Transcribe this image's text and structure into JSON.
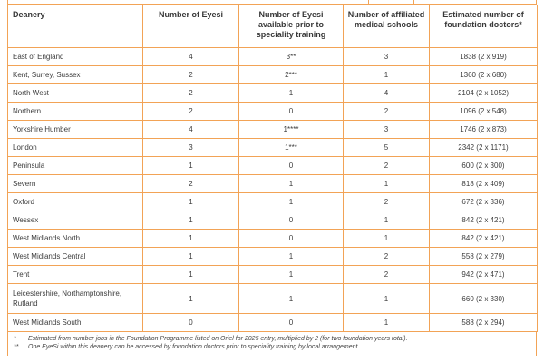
{
  "page": {
    "table": {
      "headers": [
        "Deanery",
        "Number of Eyesi",
        "Number of Eyesi\navailable prior to\nspeciality training",
        "Number of affiliated\nmedical schools",
        "Estimated number of\nfoundation doctors*"
      ],
      "rows": [
        [
          "East of England",
          "4",
          "3**",
          "3",
          "1838 (2 x 919)"
        ],
        [
          "Kent, Surrey, Sussex",
          "2",
          "2***",
          "1",
          "1360 (2 x 680)"
        ],
        [
          "North West",
          "2",
          "1",
          "4",
          "2104 (2 x 1052)"
        ],
        [
          "Northern",
          "2",
          "0",
          "2",
          "1096 (2 x 548)"
        ],
        [
          "Yorkshire Humber",
          "4",
          "1****",
          "3",
          "1746 (2 x 873)"
        ],
        [
          "London",
          "3",
          "1***",
          "5",
          "2342 (2 x 1171)"
        ],
        [
          "Peninsula",
          "1",
          "0",
          "2",
          "600 (2 x 300)"
        ],
        [
          "Severn",
          "2",
          "1",
          "1",
          "818 (2 x 409)"
        ],
        [
          "Oxford",
          "1",
          "1",
          "2",
          "672 (2 x 336)"
        ],
        [
          "Wessex",
          "1",
          "0",
          "1",
          "842 (2 x 421)"
        ],
        [
          "West Midlands North",
          "1",
          "0",
          "1",
          "842 (2 x 421)"
        ],
        [
          "West Midlands Central",
          "1",
          "1",
          "2",
          "558 (2 x 279)"
        ],
        [
          "Trent",
          "1",
          "1",
          "2",
          "942 (2 x 471)"
        ],
        [
          "Leicestershire, Northamptonshire, Rutland",
          "1",
          "1",
          "1",
          "660 (2 x 330)"
        ],
        [
          "West Midlands South",
          "0",
          "0",
          "1",
          "588 (2 x 294)"
        ]
      ],
      "tall_row_index": 13,
      "footnotes": [
        {
          "marker": "*",
          "text": "Estimated from number jobs in the Foundation Programme listed on Oriel for 2025 entry, multiplied by 2 (for two foundation years total)."
        },
        {
          "marker": "**",
          "text": "One EyeSi within this deanery can be accessed by foundation doctors prior to speciality training by local arrangement."
        }
      ]
    }
  },
  "colors": {
    "border_orange": "#F2A356",
    "text_dark": "#3C3C3C"
  }
}
